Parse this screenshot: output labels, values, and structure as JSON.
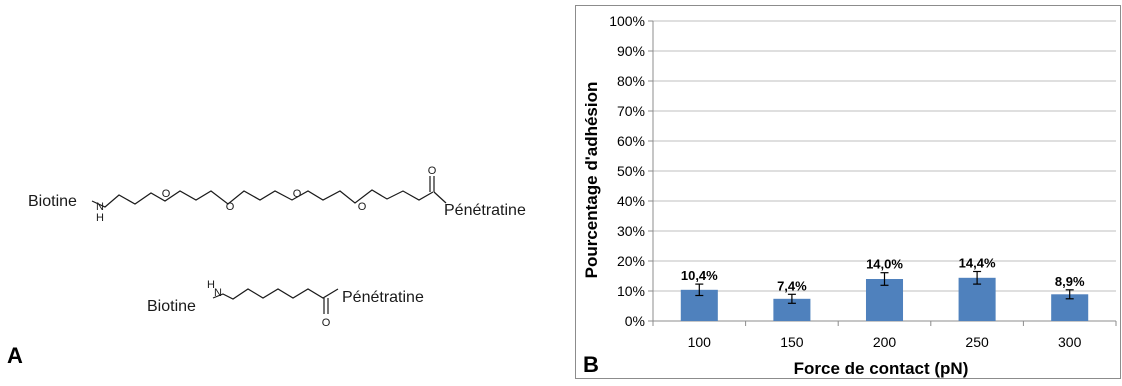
{
  "panel_a": {
    "letter": "A",
    "molecule_1": {
      "left": "Biotine",
      "nh_n": "N",
      "nh_h": "H",
      "oxygens": [
        "O",
        "O",
        "O",
        "O"
      ],
      "carbonyl_o": "O",
      "right": "Pénétratine"
    },
    "molecule_2": {
      "left": "Biotine",
      "nh_n": "N",
      "nh_h": "H",
      "carbonyl_o": "O",
      "right": "Pénétratine"
    }
  },
  "panel_b": {
    "letter": "B"
  },
  "chart_data": {
    "type": "bar",
    "categories": [
      "100",
      "150",
      "200",
      "250",
      "300"
    ],
    "values": [
      10.4,
      7.4,
      14.0,
      14.4,
      8.9
    ],
    "error": [
      1.9,
      1.5,
      2.1,
      2.1,
      1.5
    ],
    "data_labels": [
      "10,4%",
      "7,4%",
      "14,0%",
      "14,4%",
      "8,9%"
    ],
    "yticks": [
      "0%",
      "10%",
      "20%",
      "30%",
      "40%",
      "50%",
      "60%",
      "70%",
      "80%",
      "90%",
      "100%"
    ],
    "ylim": [
      0,
      100
    ],
    "xlabel": "Force de contact (pN)",
    "ylabel": "Pourcentage d'adhésion",
    "grid": true,
    "bar_color": "#4f81bd",
    "grid_color": "#bfbfbf"
  }
}
